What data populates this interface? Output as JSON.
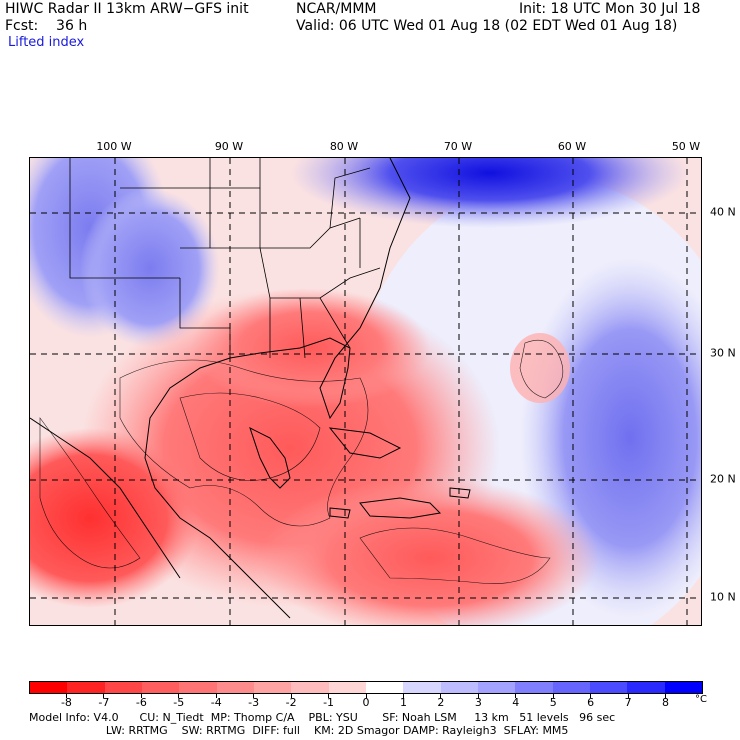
{
  "header": {
    "line1_left": "HIWC Radar II 13km ARW−GFS init",
    "line1_mid": "NCAR/MMM",
    "line1_right": "Init: 18 UTC Mon 30 Jul 18",
    "line2_left": "Fcst:    36 h",
    "line2_right": "Valid: 06 UTC Wed 01 Aug 18 (02 EDT Wed 01 Aug 18)",
    "field_name": "Lifted index"
  },
  "map": {
    "lon_labels": [
      "100 W",
      "90 W",
      "80 W",
      "70 W",
      "60 W",
      "50 W"
    ],
    "lat_labels": [
      "40 N",
      "30 N",
      "20 N",
      "10 N"
    ]
  },
  "colorbar": {
    "levels": [
      "-8",
      "-7",
      "-6",
      "-5",
      "-4",
      "-3",
      "-2",
      "-1",
      "0",
      "1",
      "2",
      "3",
      "4",
      "5",
      "6",
      "7",
      "8"
    ],
    "unit": "°C",
    "colors": [
      "#ff0000",
      "#ff2424",
      "#ff4747",
      "#ff5e5e",
      "#ff7575",
      "#ff8c8c",
      "#ffa3a3",
      "#ffbcbc",
      "#ffd6d6",
      "#ffffff",
      "#d6d6ff",
      "#bcbcff",
      "#a3a3ff",
      "#8080ff",
      "#6666ff",
      "#4c4cff",
      "#2a2aff",
      "#0000ff"
    ]
  },
  "footer": {
    "line1": "Model Info: V4.0      CU: N_Tiedt  MP: Thomp C/A    PBL: YSU       SF: Noah LSM     13 km   51 levels   96 sec",
    "line2": "                      LW: RRTMG    SW: RRTMG  DIFF: full    KM: 2D Smagor DAMP: Rayleigh3  SFLAY: MM5"
  }
}
